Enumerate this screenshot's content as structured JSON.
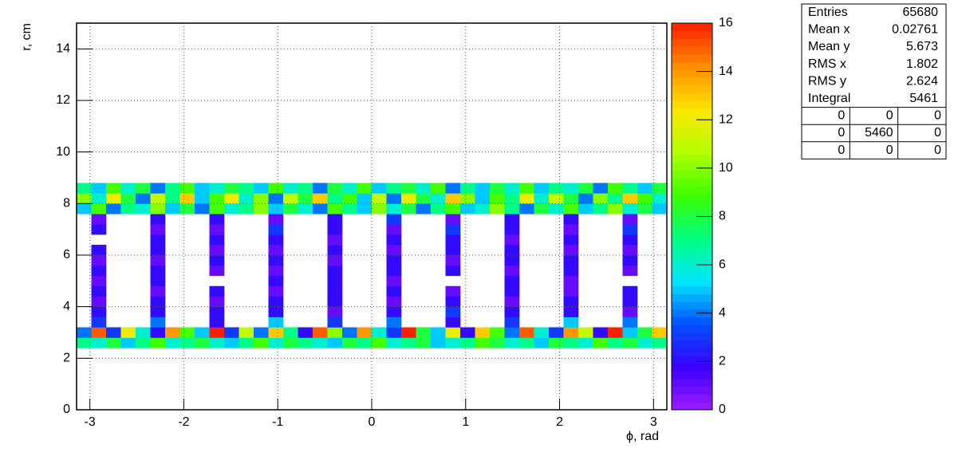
{
  "chart_data": {
    "type": "heatmap",
    "xlabel": "ϕ, rad",
    "ylabel": "r, cm",
    "xlim": [
      -3.1416,
      3.1416
    ],
    "ylim": [
      0,
      15
    ],
    "zlim": [
      0,
      16
    ],
    "xticks": [
      -3,
      -2,
      -1,
      0,
      1,
      2,
      3
    ],
    "yticks": [
      0,
      2,
      4,
      6,
      8,
      10,
      12,
      14
    ],
    "zticks": [
      0,
      2,
      4,
      6,
      8,
      10,
      12,
      14,
      16
    ],
    "grid": true,
    "palette": [
      "#9c1cff",
      "#3a00ff",
      "#0050ff",
      "#00e6ff",
      "#00ff80",
      "#3cff00",
      "#b4ff00",
      "#ffe600",
      "#ff8c00",
      "#ff1e00"
    ],
    "yedges": [
      2.4,
      2.8,
      3.2,
      3.6,
      4.0,
      4.4,
      4.8,
      5.2,
      5.6,
      6.0,
      6.4,
      6.8,
      7.2,
      7.6,
      8.0,
      8.4,
      8.8
    ],
    "z": [
      [
        7,
        6,
        8,
        5,
        7,
        9,
        6,
        7,
        8,
        6,
        5,
        7,
        9,
        6,
        8,
        7,
        6,
        5,
        8,
        7,
        9,
        6,
        7,
        8,
        5,
        6,
        7,
        9,
        8,
        6,
        7,
        5,
        8,
        7,
        6,
        9,
        7,
        8,
        6,
        7
      ],
      [
        4,
        15,
        3,
        12,
        6,
        2,
        14,
        9,
        5,
        16,
        3,
        11,
        4,
        13,
        7,
        2,
        15,
        10,
        4,
        14,
        6,
        3,
        16,
        8,
        5,
        12,
        2,
        13,
        9,
        4,
        15,
        6,
        3,
        14,
        11,
        2,
        16,
        5,
        8,
        13
      ],
      [
        0,
        3,
        0,
        0,
        0,
        4,
        0,
        0,
        0,
        2,
        0,
        0,
        0,
        5,
        0,
        0,
        0,
        3,
        0,
        0,
        0,
        4,
        0,
        0,
        0,
        2,
        0,
        0,
        0,
        3,
        0,
        0,
        0,
        5,
        0,
        0,
        0,
        4,
        0,
        0
      ],
      [
        0,
        2,
        0,
        0,
        0,
        2,
        0,
        0,
        0,
        2,
        0,
        0,
        0,
        2,
        0,
        0,
        0,
        1,
        0,
        0,
        0,
        2,
        0,
        0,
        0,
        3,
        0,
        0,
        0,
        2,
        0,
        0,
        0,
        2,
        0,
        0,
        0,
        1,
        0,
        0
      ],
      [
        0,
        1,
        0,
        0,
        0,
        2,
        0,
        0,
        0,
        1,
        0,
        0,
        0,
        2,
        0,
        0,
        0,
        2,
        0,
        0,
        0,
        1,
        0,
        0,
        0,
        2,
        0,
        0,
        0,
        1,
        0,
        0,
        0,
        2,
        0,
        0,
        0,
        2,
        0,
        0
      ],
      [
        0,
        2,
        0,
        0,
        0,
        1,
        0,
        0,
        0,
        2,
        0,
        0,
        0,
        1,
        0,
        0,
        0,
        2,
        0,
        0,
        0,
        2,
        0,
        0,
        0,
        1,
        0,
        0,
        0,
        2,
        0,
        0,
        0,
        1,
        0,
        0,
        0,
        2,
        0,
        0
      ],
      [
        0,
        1,
        0,
        0,
        0,
        2,
        0,
        0,
        0,
        0,
        0,
        0,
        0,
        2,
        0,
        0,
        0,
        2,
        0,
        0,
        0,
        1,
        0,
        0,
        0,
        0,
        0,
        0,
        0,
        2,
        0,
        0,
        0,
        1,
        0,
        0,
        0,
        0,
        0,
        0
      ],
      [
        0,
        2,
        0,
        0,
        0,
        2,
        0,
        0,
        0,
        1,
        0,
        0,
        0,
        1,
        0,
        0,
        0,
        2,
        0,
        0,
        0,
        2,
        0,
        0,
        0,
        2,
        0,
        0,
        0,
        1,
        0,
        0,
        0,
        2,
        0,
        0,
        0,
        1,
        0,
        0
      ],
      [
        0,
        1,
        0,
        0,
        0,
        1,
        0,
        0,
        0,
        2,
        0,
        0,
        0,
        2,
        0,
        0,
        0,
        1,
        0,
        0,
        0,
        2,
        0,
        0,
        0,
        1,
        0,
        0,
        0,
        2,
        0,
        0,
        0,
        2,
        0,
        0,
        0,
        2,
        0,
        0
      ],
      [
        0,
        2,
        0,
        0,
        0,
        2,
        0,
        0,
        0,
        1,
        0,
        0,
        0,
        1,
        0,
        0,
        0,
        2,
        0,
        0,
        0,
        1,
        0,
        0,
        0,
        2,
        0,
        0,
        0,
        2,
        0,
        0,
        0,
        1,
        0,
        0,
        0,
        1,
        0,
        0
      ],
      [
        0,
        0,
        0,
        0,
        0,
        2,
        0,
        0,
        0,
        2,
        0,
        0,
        0,
        2,
        0,
        0,
        0,
        1,
        0,
        0,
        0,
        2,
        0,
        0,
        0,
        2,
        0,
        0,
        0,
        1,
        0,
        0,
        0,
        2,
        0,
        0,
        0,
        2,
        0,
        0
      ],
      [
        0,
        2,
        0,
        0,
        0,
        1,
        0,
        0,
        0,
        1,
        0,
        0,
        0,
        3,
        0,
        0,
        0,
        2,
        0,
        0,
        0,
        1,
        0,
        0,
        0,
        3,
        0,
        0,
        0,
        2,
        0,
        0,
        0,
        1,
        0,
        0,
        0,
        3,
        0,
        0
      ],
      [
        0,
        1,
        0,
        0,
        0,
        2,
        0,
        0,
        0,
        2,
        0,
        0,
        0,
        1,
        0,
        0,
        0,
        2,
        0,
        0,
        0,
        3,
        0,
        0,
        0,
        1,
        0,
        0,
        0,
        2,
        0,
        0,
        0,
        2,
        0,
        0,
        0,
        1,
        0,
        0
      ],
      [
        5,
        9,
        4,
        7,
        6,
        10,
        5,
        8,
        4,
        9,
        6,
        7,
        10,
        5,
        8,
        6,
        4,
        9,
        7,
        5,
        10,
        6,
        8,
        4,
        7,
        9,
        5,
        6,
        10,
        7,
        4,
        8,
        6,
        9,
        5,
        7,
        10,
        6,
        8,
        5
      ],
      [
        10,
        6,
        12,
        8,
        4,
        11,
        7,
        13,
        5,
        9,
        12,
        6,
        10,
        4,
        11,
        8,
        13,
        7,
        9,
        5,
        11,
        4,
        12,
        8,
        6,
        13,
        10,
        5,
        9,
        7,
        12,
        6,
        11,
        8,
        4,
        10,
        7,
        13,
        9,
        6
      ],
      [
        7,
        5,
        9,
        6,
        8,
        4,
        7,
        9,
        5,
        6,
        8,
        7,
        5,
        9,
        6,
        7,
        4,
        8,
        6,
        9,
        5,
        7,
        8,
        6,
        9,
        4,
        7,
        5,
        8,
        6,
        9,
        5,
        7,
        6,
        8,
        4,
        9,
        7,
        5,
        8
      ]
    ]
  },
  "stats": {
    "rows": [
      [
        "Entries",
        65680
      ],
      [
        "Mean x",
        0.02761
      ],
      [
        "Mean y",
        5.673
      ],
      [
        "RMS x",
        1.802
      ],
      [
        "RMS y",
        2.624
      ],
      [
        "Integral",
        5461
      ]
    ],
    "grid": [
      [
        0,
        0,
        0
      ],
      [
        0,
        5460,
        0
      ],
      [
        0,
        0,
        0
      ]
    ]
  }
}
